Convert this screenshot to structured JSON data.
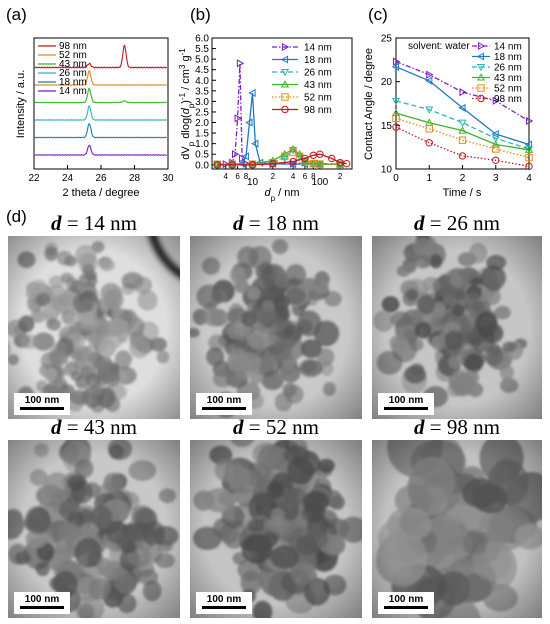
{
  "panels": {
    "a": "(a)",
    "b": "(b)",
    "c": "(c)",
    "d": "(d)"
  },
  "colors": {
    "14 nm": "#7b1fc2",
    "18 nm": "#1f78c8",
    "26 nm": "#2bb7b7",
    "43 nm": "#3cb52a",
    "52 nm": "#e08a1e",
    "98 nm": "#c0181e"
  },
  "chart_data": [
    {
      "id": "a",
      "type": "line",
      "xlabel": "2 theta / degree",
      "ylabel": "Intensity / a.u.",
      "xlim": [
        22,
        30
      ],
      "xticks": [
        "22",
        "24",
        "26",
        "28",
        "30"
      ],
      "legend_placement": "top-left",
      "series": [
        {
          "name": "98 nm",
          "offset": 5,
          "peaks": [
            [
              25.3,
              0.18
            ],
            [
              27.4,
              1.0
            ]
          ]
        },
        {
          "name": "52 nm",
          "offset": 4,
          "peaks": [
            [
              25.3,
              1.0
            ]
          ]
        },
        {
          "name": "43 nm",
          "offset": 3,
          "peaks": [
            [
              25.3,
              1.0
            ],
            [
              27.4,
              0.12
            ]
          ]
        },
        {
          "name": "26 nm",
          "offset": 2,
          "peaks": [
            [
              25.3,
              1.0
            ]
          ]
        },
        {
          "name": "18 nm",
          "offset": 1,
          "peaks": [
            [
              25.3,
              1.0
            ]
          ]
        },
        {
          "name": "14 nm",
          "offset": 0,
          "peaks": [
            [
              25.3,
              0.7
            ]
          ]
        }
      ]
    },
    {
      "id": "b",
      "type": "line",
      "xscale": "log",
      "xlabel": "d_p / nm",
      "ylabel": "dV_p dlog(d_p)^-1 / cm^3 g^-1",
      "xlim": [
        2.5,
        300
      ],
      "ylim": [
        -0.2,
        6.0
      ],
      "yticks": [
        "0.0",
        "0.5",
        "1.0",
        "1.5",
        "2.0",
        "2.5",
        "3.0",
        "3.5",
        "4.0",
        "4.5",
        "5.0",
        "5.5",
        "6.0"
      ],
      "xticks_major": [
        "10",
        "100"
      ],
      "xticks_minor": [
        "4",
        "6",
        "8",
        "2",
        "4",
        "6",
        "8",
        "2"
      ],
      "legend_placement": "top-right",
      "series": [
        {
          "name": "14 nm",
          "marker": "triangle-right",
          "style": "dash-dot",
          "x": [
            3,
            4,
            5,
            5.5,
            6,
            6.5,
            7,
            8,
            10,
            20,
            40,
            60,
            100,
            200
          ],
          "y": [
            0.03,
            0.03,
            0.1,
            0.5,
            2.2,
            4.8,
            0.3,
            0.05,
            0.03,
            0.03,
            0.05,
            0.1,
            0.05,
            0.03
          ]
        },
        {
          "name": "18 nm",
          "marker": "triangle-left",
          "style": "solid",
          "x": [
            3,
            5,
            7,
            8,
            9,
            10,
            11,
            13,
            20,
            40,
            60,
            100,
            200
          ],
          "y": [
            0.02,
            0.02,
            0.05,
            0.4,
            2.0,
            3.4,
            1.0,
            0.1,
            0.05,
            0.03,
            0.03,
            0.03,
            0.02
          ]
        },
        {
          "name": "26 nm",
          "marker": "triangle-down",
          "style": "dash",
          "x": [
            3,
            5,
            10,
            20,
            30,
            40,
            50,
            60,
            80,
            100,
            200
          ],
          "y": [
            0.02,
            0.02,
            0.03,
            0.1,
            0.3,
            0.7,
            0.4,
            0.15,
            0.05,
            0.03,
            0.02
          ]
        },
        {
          "name": "43 nm",
          "marker": "triangle-up",
          "style": "solid",
          "x": [
            3,
            5,
            10,
            20,
            30,
            40,
            50,
            60,
            80,
            100,
            200
          ],
          "y": [
            0.02,
            0.02,
            0.03,
            0.2,
            0.5,
            0.75,
            0.5,
            0.2,
            0.05,
            0.03,
            0.02
          ]
        },
        {
          "name": "52 nm",
          "marker": "square",
          "style": "dot",
          "x": [
            3,
            5,
            10,
            20,
            30,
            40,
            50,
            60,
            80,
            100,
            200
          ],
          "y": [
            0.02,
            0.02,
            0.03,
            0.1,
            0.4,
            0.6,
            0.4,
            0.15,
            0.05,
            0.03,
            0.02
          ]
        },
        {
          "name": "98 nm",
          "marker": "circle",
          "style": "solid",
          "x": [
            3,
            5,
            10,
            20,
            40,
            60,
            80,
            100,
            150,
            200,
            250
          ],
          "y": [
            0.0,
            0.0,
            0.0,
            0.05,
            0.15,
            0.3,
            0.45,
            0.5,
            0.3,
            0.1,
            0.05
          ]
        }
      ]
    },
    {
      "id": "c",
      "type": "line",
      "xlabel": "Time / s",
      "ylabel": "Contact Angle / degree",
      "annotation": "solvent: water",
      "xlim": [
        0,
        4
      ],
      "ylim": [
        10,
        25
      ],
      "xticks": [
        "0",
        "1",
        "2",
        "3",
        "4"
      ],
      "yticks": [
        "10",
        "15",
        "20",
        "25"
      ],
      "x": [
        0,
        1,
        2,
        3,
        4
      ],
      "legend_placement": "top-right",
      "series": [
        {
          "name": "14 nm",
          "marker": "triangle-right",
          "style": "dash-dot",
          "y": [
            22.3,
            20.8,
            18.8,
            17.8,
            15.5
          ]
        },
        {
          "name": "18 nm",
          "marker": "triangle-left",
          "style": "solid",
          "y": [
            21.7,
            20.1,
            17.0,
            14.0,
            12.8
          ]
        },
        {
          "name": "26 nm",
          "marker": "triangle-down",
          "style": "dash",
          "y": [
            17.8,
            16.8,
            15.3,
            13.5,
            12.3
          ]
        },
        {
          "name": "43 nm",
          "marker": "triangle-up",
          "style": "solid",
          "y": [
            16.4,
            15.3,
            14.4,
            12.8,
            12.2
          ]
        },
        {
          "name": "52 nm",
          "marker": "square",
          "style": "dot",
          "y": [
            15.8,
            14.6,
            13.3,
            12.3,
            11.3
          ]
        },
        {
          "name": "98 nm",
          "marker": "circle",
          "style": "dot",
          "y": [
            14.8,
            13.0,
            11.5,
            11.0,
            10.3
          ]
        }
      ]
    }
  ],
  "tem": [
    {
      "label": "d",
      "value": "= 14 nm",
      "scalebar": "100 nm"
    },
    {
      "label": "d",
      "value": "= 18 nm",
      "scalebar": "100 nm"
    },
    {
      "label": "d",
      "value": "= 26 nm",
      "scalebar": "100 nm"
    },
    {
      "label": "d",
      "value": "= 43 nm",
      "scalebar": "100 nm"
    },
    {
      "label": "d",
      "value": "= 52 nm",
      "scalebar": "100 nm"
    },
    {
      "label": "d",
      "value": "= 98 nm",
      "scalebar": "100 nm"
    }
  ]
}
